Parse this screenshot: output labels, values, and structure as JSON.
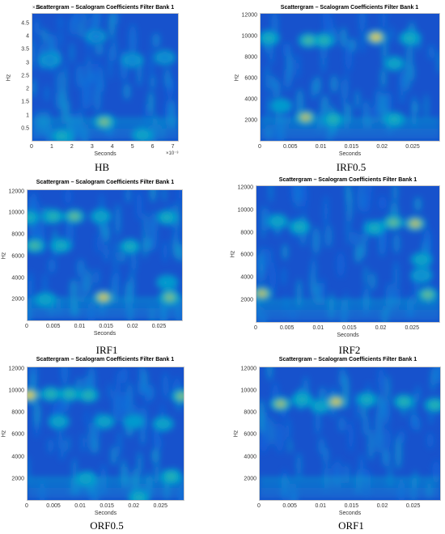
{
  "charts": [
    {
      "caption": "HB",
      "chart_data": {
        "type": "heatmap",
        "title": "Scattergram – Scalogram Coefficients Filter Bank 1",
        "xlabel": "Seconds",
        "ylabel": "Hz",
        "xlim": [
          0,
          7.3
        ],
        "ylim": [
          0,
          4.9
        ],
        "x_ticks": [
          "0",
          "1",
          "2",
          "3",
          "4",
          "5",
          "6",
          "7"
        ],
        "y_ticks": [
          "0.5",
          "1",
          "1.5",
          "2",
          "2.5",
          "3",
          "3.5",
          "4",
          "4.5"
        ],
        "x_exponent": "×10⁻³",
        "y_exponent": "×10⁴",
        "colormap": "parula",
        "hotspots": [
          {
            "x": 3.6,
            "y": 0.75,
            "intensity": 0.75
          },
          {
            "x": 1.5,
            "y": 0.2,
            "intensity": 0.55
          },
          {
            "x": 5.5,
            "y": 0.25,
            "intensity": 0.5
          },
          {
            "x": 0.9,
            "y": 3.1,
            "intensity": 0.35
          },
          {
            "x": 5.0,
            "y": 3.1,
            "intensity": 0.35
          },
          {
            "x": 6.6,
            "y": 3.2,
            "intensity": 0.35
          },
          {
            "x": 3.2,
            "y": 4.0,
            "intensity": 0.3
          }
        ]
      }
    },
    {
      "caption": "IRF0.5",
      "chart_data": {
        "type": "heatmap",
        "title": "Scattergram – Scalogram Coefficients Filter Bank 1",
        "xlabel": "Seconds",
        "ylabel": "Hz",
        "xlim": [
          0,
          0.0295
        ],
        "ylim": [
          0,
          12200
        ],
        "x_ticks": [
          "0",
          "0.005",
          "0.01",
          "0.015",
          "0.02",
          "0.025"
        ],
        "y_ticks": [
          "2000",
          "4000",
          "6000",
          "8000",
          "10000",
          "12000"
        ],
        "colormap": "parula",
        "hotspots": [
          {
            "x": 0.019,
            "y": 9900,
            "intensity": 0.95
          },
          {
            "x": 0.0075,
            "y": 2300,
            "intensity": 0.85
          },
          {
            "x": 0.012,
            "y": 2100,
            "intensity": 0.6
          },
          {
            "x": 0.022,
            "y": 2100,
            "intensity": 0.55
          },
          {
            "x": 0.008,
            "y": 9600,
            "intensity": 0.65
          },
          {
            "x": 0.0105,
            "y": 9600,
            "intensity": 0.6
          },
          {
            "x": 0.0015,
            "y": 9800,
            "intensity": 0.55
          },
          {
            "x": 0.0245,
            "y": 9800,
            "intensity": 0.55
          },
          {
            "x": 0.022,
            "y": 7400,
            "intensity": 0.5
          },
          {
            "x": 0.0035,
            "y": 3400,
            "intensity": 0.45
          }
        ]
      }
    },
    {
      "caption": "IRF1",
      "chart_data": {
        "type": "heatmap",
        "title": "Scattergram – Scalogram Coefficients Filter Bank 1",
        "xlabel": "Seconds",
        "ylabel": "Hz",
        "xlim": [
          0,
          0.0295
        ],
        "ylim": [
          0,
          12200
        ],
        "x_ticks": [
          "0",
          "0.005",
          "0.01",
          "0.015",
          "0.02",
          "0.025"
        ],
        "y_ticks": [
          "2000",
          "4000",
          "6000",
          "8000",
          "10000",
          "12000"
        ],
        "colormap": "parula",
        "hotspots": [
          {
            "x": 0.0145,
            "y": 2200,
            "intensity": 0.9
          },
          {
            "x": 0.027,
            "y": 2200,
            "intensity": 0.75
          },
          {
            "x": 0.0035,
            "y": 2000,
            "intensity": 0.5
          },
          {
            "x": 0.009,
            "y": 9700,
            "intensity": 0.7
          },
          {
            "x": 0.005,
            "y": 9700,
            "intensity": 0.6
          },
          {
            "x": 0.0005,
            "y": 9600,
            "intensity": 0.55
          },
          {
            "x": 0.014,
            "y": 9700,
            "intensity": 0.5
          },
          {
            "x": 0.0265,
            "y": 9600,
            "intensity": 0.55
          },
          {
            "x": 0.0015,
            "y": 7000,
            "intensity": 0.65
          },
          {
            "x": 0.0065,
            "y": 7000,
            "intensity": 0.55
          },
          {
            "x": 0.0195,
            "y": 6900,
            "intensity": 0.55
          },
          {
            "x": 0.0265,
            "y": 3600,
            "intensity": 0.45
          }
        ]
      }
    },
    {
      "caption": "IRF2",
      "chart_data": {
        "type": "heatmap",
        "title": "Scattergram – Scalogram Coefficients Filter Bank 1",
        "xlabel": "Seconds",
        "ylabel": "Hz",
        "xlim": [
          0,
          0.0295
        ],
        "ylim": [
          0,
          12200
        ],
        "x_ticks": [
          "0",
          "0.005",
          "0.01",
          "0.015",
          "0.02",
          "0.025"
        ],
        "y_ticks": [
          "2000",
          "4000",
          "6000",
          "8000",
          "10000",
          "12000"
        ],
        "colormap": "parula",
        "hotspots": [
          {
            "x": 0.001,
            "y": 2600,
            "intensity": 0.85
          },
          {
            "x": 0.0275,
            "y": 2500,
            "intensity": 0.7
          },
          {
            "x": 0.0255,
            "y": 8800,
            "intensity": 0.85
          },
          {
            "x": 0.022,
            "y": 8900,
            "intensity": 0.7
          },
          {
            "x": 0.019,
            "y": 8400,
            "intensity": 0.55
          },
          {
            "x": 0.007,
            "y": 8500,
            "intensity": 0.55
          },
          {
            "x": 0.0035,
            "y": 9000,
            "intensity": 0.5
          },
          {
            "x": 0.0265,
            "y": 5600,
            "intensity": 0.5
          },
          {
            "x": 0.0265,
            "y": 4200,
            "intensity": 0.4
          }
        ]
      }
    },
    {
      "caption": "ORF0.5",
      "chart_data": {
        "type": "heatmap",
        "title": "Scattergram – Scalogram Coefficients Filter Bank 1",
        "xlabel": "Seconds",
        "ylabel": "Hz",
        "xlim": [
          0,
          0.0295
        ],
        "ylim": [
          0,
          12200
        ],
        "x_ticks": [
          "0",
          "0.005",
          "0.01",
          "0.015",
          "0.02",
          "0.025"
        ],
        "y_ticks": [
          "2000",
          "4000",
          "6000",
          "8000",
          "10000",
          "12000"
        ],
        "colormap": "parula",
        "hotspots": [
          {
            "x": 0.0005,
            "y": 9600,
            "intensity": 0.95
          },
          {
            "x": 0.029,
            "y": 9500,
            "intensity": 0.75
          },
          {
            "x": 0.0045,
            "y": 9700,
            "intensity": 0.6
          },
          {
            "x": 0.008,
            "y": 9700,
            "intensity": 0.6
          },
          {
            "x": 0.0115,
            "y": 9600,
            "intensity": 0.6
          },
          {
            "x": 0.006,
            "y": 7200,
            "intensity": 0.5
          },
          {
            "x": 0.0145,
            "y": 7200,
            "intensity": 0.5
          },
          {
            "x": 0.02,
            "y": 7200,
            "intensity": 0.45
          },
          {
            "x": 0.0255,
            "y": 7000,
            "intensity": 0.5
          },
          {
            "x": 0.027,
            "y": 2200,
            "intensity": 0.6
          },
          {
            "x": 0.011,
            "y": 2000,
            "intensity": 0.5
          },
          {
            "x": 0.021,
            "y": 300,
            "intensity": 0.55
          }
        ]
      }
    },
    {
      "caption": "ORF1",
      "chart_data": {
        "type": "heatmap",
        "title": "Scattergram – Scalogram Coefficients Filter Bank 1",
        "xlabel": "Seconds",
        "ylabel": "Hz",
        "xlim": [
          0,
          0.0295
        ],
        "ylim": [
          0,
          12200
        ],
        "x_ticks": [
          "0",
          "0.005",
          "0.01",
          "0.015",
          "0.02",
          "0.025"
        ],
        "y_ticks": [
          "2000",
          "4000",
          "6000",
          "8000",
          "10000",
          "12000"
        ],
        "colormap": "parula",
        "hotspots": [
          {
            "x": 0.0125,
            "y": 9000,
            "intensity": 0.9
          },
          {
            "x": 0.0035,
            "y": 8800,
            "intensity": 0.8
          },
          {
            "x": 0.007,
            "y": 9200,
            "intensity": 0.55
          },
          {
            "x": 0.0175,
            "y": 9200,
            "intensity": 0.55
          },
          {
            "x": 0.0235,
            "y": 9000,
            "intensity": 0.6
          },
          {
            "x": 0.0285,
            "y": 8700,
            "intensity": 0.6
          },
          {
            "x": 0.01,
            "y": 8600,
            "intensity": 0.5
          }
        ]
      }
    }
  ]
}
